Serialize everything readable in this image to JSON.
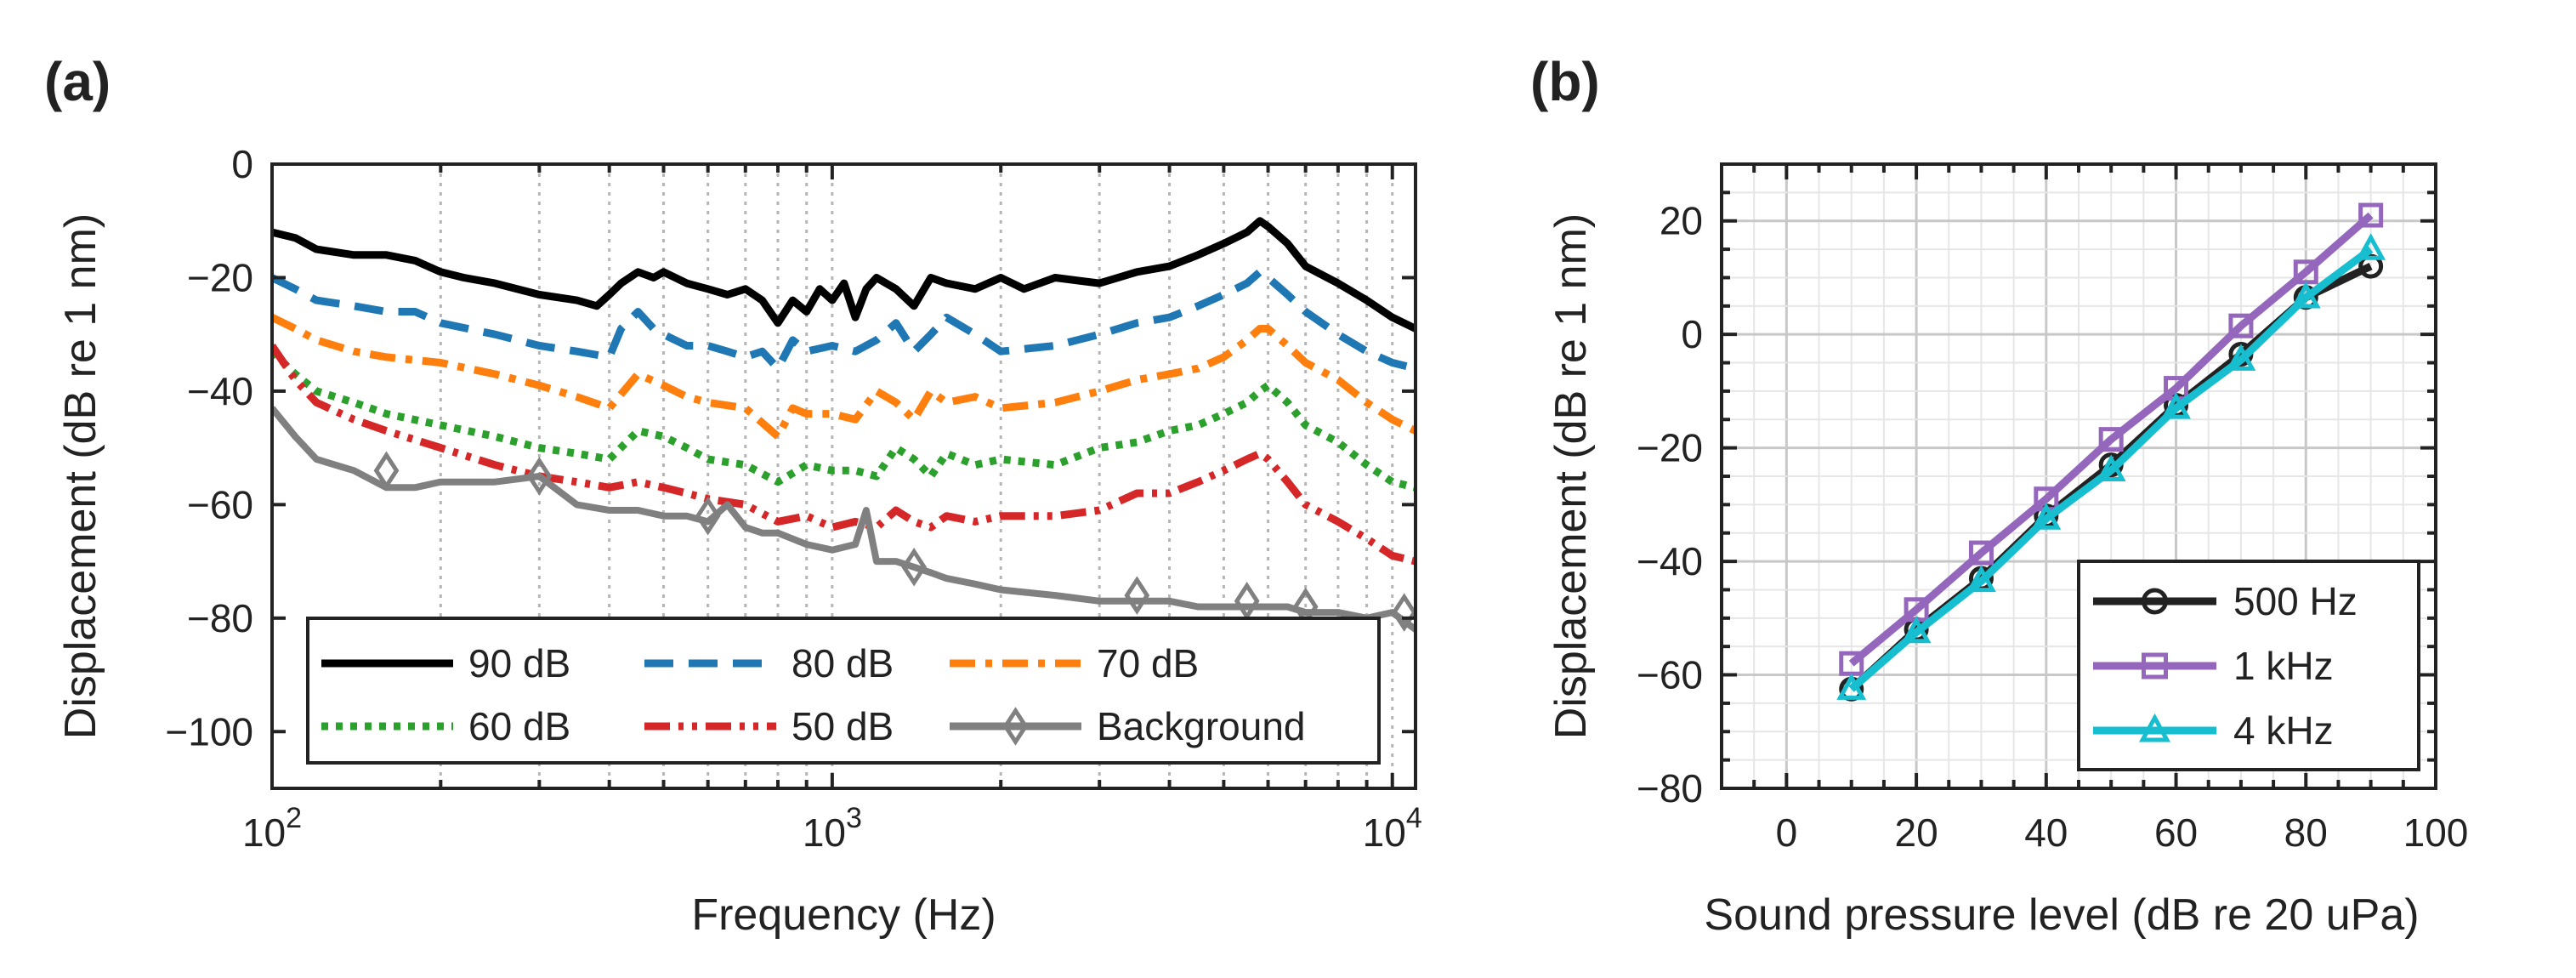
{
  "chart_data": [
    {
      "panel_label": "(a)",
      "type": "line",
      "xscale": "log",
      "xlabel": "Frequency (Hz)",
      "ylabel": "Displacement (dB re 1 nm)",
      "xlim": [
        100,
        11000
      ],
      "ylim": [
        -110,
        0
      ],
      "grid": "x-minor-dotted",
      "xticks": [
        100,
        1000,
        10000
      ],
      "xtick_labels": [
        {
          "base": "10",
          "exp": "2"
        },
        {
          "base": "10",
          "exp": "3"
        },
        {
          "base": "10",
          "exp": "4"
        }
      ],
      "yticks": [
        0,
        -20,
        -40,
        -60,
        -80,
        -100
      ],
      "ytick_labels": [
        "0",
        "−20",
        "−40",
        "−60",
        "−80",
        "−100"
      ],
      "legend_position": "bottom-center",
      "series": [
        {
          "name": "90 dB",
          "color": "#000000",
          "style": "solid",
          "marker": "none",
          "x": [
            100,
            110,
            120,
            140,
            160,
            180,
            200,
            220,
            250,
            300,
            350,
            380,
            400,
            420,
            450,
            480,
            500,
            550,
            600,
            650,
            700,
            750,
            800,
            850,
            900,
            950,
            1000,
            1050,
            1100,
            1150,
            1200,
            1300,
            1400,
            1500,
            1600,
            1800,
            2000,
            2200,
            2500,
            3000,
            3500,
            4000,
            4500,
            5000,
            5500,
            5800,
            6000,
            6500,
            7000,
            8000,
            9000,
            10000,
            11000
          ],
          "y": [
            -12,
            -13,
            -15,
            -16,
            -16,
            -17,
            -19,
            -20,
            -21,
            -23,
            -24,
            -25,
            -23,
            -21,
            -19,
            -20,
            -19,
            -21,
            -22,
            -23,
            -22,
            -24,
            -28,
            -24,
            -26,
            -22,
            -24,
            -21,
            -27,
            -22,
            -20,
            -22,
            -25,
            -20,
            -21,
            -22,
            -20,
            -22,
            -20,
            -21,
            -19,
            -18,
            -16,
            -14,
            -12,
            -10,
            -11,
            -14,
            -18,
            -21,
            -24,
            -27,
            -29
          ]
        },
        {
          "name": "80 dB",
          "color": "#1f77b4",
          "style": "dashed",
          "marker": "none",
          "x": [
            100,
            110,
            120,
            140,
            160,
            180,
            200,
            250,
            300,
            350,
            400,
            420,
            450,
            480,
            500,
            550,
            600,
            650,
            700,
            750,
            800,
            850,
            900,
            1000,
            1100,
            1200,
            1300,
            1400,
            1500,
            1600,
            1800,
            2000,
            2500,
            3000,
            3500,
            4000,
            4500,
            5000,
            5500,
            5800,
            6000,
            6500,
            7000,
            8000,
            9000,
            10000,
            11000
          ],
          "y": [
            -20,
            -22,
            -24,
            -25,
            -26,
            -26,
            -28,
            -30,
            -32,
            -33,
            -34,
            -29,
            -26,
            -29,
            -30,
            -32,
            -32,
            -33,
            -34,
            -33,
            -36,
            -31,
            -33,
            -32,
            -33,
            -31,
            -28,
            -33,
            -30,
            -27,
            -30,
            -33,
            -32,
            -30,
            -28,
            -27,
            -25,
            -23,
            -21,
            -19,
            -20,
            -23,
            -26,
            -30,
            -33,
            -35,
            -36
          ]
        },
        {
          "name": "70 dB",
          "color": "#ff7f0e",
          "style": "dashdot",
          "marker": "none",
          "x": [
            100,
            110,
            120,
            140,
            160,
            200,
            250,
            300,
            350,
            400,
            450,
            500,
            550,
            600,
            700,
            800,
            850,
            900,
            1000,
            1100,
            1200,
            1300,
            1400,
            1500,
            1600,
            1800,
            2000,
            2500,
            3000,
            3500,
            4000,
            4500,
            5000,
            5500,
            5800,
            6000,
            6500,
            7000,
            8000,
            9000,
            10000,
            11000
          ],
          "y": [
            -27,
            -29,
            -31,
            -33,
            -34,
            -35,
            -37,
            -39,
            -41,
            -43,
            -37,
            -39,
            -41,
            -42,
            -43,
            -48,
            -43,
            -44,
            -44,
            -45,
            -40,
            -42,
            -45,
            -40,
            -42,
            -41,
            -43,
            -42,
            -40,
            -38,
            -37,
            -36,
            -34,
            -31,
            -29,
            -29,
            -32,
            -35,
            -38,
            -42,
            -45,
            -47
          ]
        },
        {
          "name": "60 dB",
          "color": "#2ca02c",
          "style": "dotted",
          "marker": "none",
          "x": [
            100,
            110,
            120,
            140,
            160,
            200,
            250,
            300,
            350,
            400,
            450,
            500,
            550,
            600,
            700,
            800,
            900,
            1000,
            1100,
            1200,
            1300,
            1400,
            1500,
            1600,
            1800,
            2000,
            2500,
            3000,
            3500,
            4000,
            4500,
            5000,
            5500,
            5800,
            6000,
            6500,
            7000,
            8000,
            9000,
            10000,
            11000
          ],
          "y": [
            -33,
            -37,
            -40,
            -42,
            -44,
            -46,
            -48,
            -50,
            -51,
            -52,
            -47,
            -48,
            -50,
            -52,
            -53,
            -56,
            -53,
            -54,
            -54,
            -55,
            -50,
            -52,
            -55,
            -51,
            -53,
            -52,
            -53,
            -50,
            -49,
            -47,
            -46,
            -44,
            -42,
            -40,
            -39,
            -42,
            -46,
            -49,
            -53,
            -56,
            -57
          ]
        },
        {
          "name": "50 dB",
          "color": "#d62728",
          "style": "dashdotdot",
          "marker": "none",
          "x": [
            100,
            110,
            120,
            140,
            160,
            200,
            250,
            300,
            350,
            400,
            450,
            500,
            550,
            600,
            700,
            800,
            900,
            1000,
            1100,
            1200,
            1300,
            1400,
            1500,
            1600,
            1800,
            2000,
            2500,
            3000,
            3500,
            4000,
            4500,
            5000,
            5500,
            5800,
            6000,
            6500,
            7000,
            8000,
            9000,
            10000,
            11000
          ],
          "y": [
            -32,
            -38,
            -42,
            -45,
            -47,
            -50,
            -53,
            -55,
            -56,
            -57,
            -56,
            -57,
            -58,
            -59,
            -60,
            -63,
            -62,
            -64,
            -63,
            -64,
            -61,
            -63,
            -64,
            -62,
            -63,
            -62,
            -62,
            -61,
            -58,
            -58,
            -56,
            -54,
            -52,
            -51,
            -52,
            -56,
            -60,
            -63,
            -66,
            -69,
            -70
          ]
        },
        {
          "name": "Background",
          "color": "#808080",
          "style": "solid",
          "marker": "diamond",
          "x": [
            100,
            110,
            120,
            140,
            160,
            180,
            200,
            250,
            300,
            350,
            400,
            450,
            500,
            550,
            600,
            650,
            700,
            750,
            800,
            900,
            1000,
            1100,
            1150,
            1200,
            1300,
            1400,
            1500,
            1600,
            1800,
            2000,
            2500,
            3000,
            3500,
            4000,
            4500,
            5000,
            5500,
            6000,
            6500,
            7000,
            8000,
            9000,
            10000,
            11000
          ],
          "y": [
            -43,
            -48,
            -52,
            -54,
            -57,
            -57,
            -56,
            -56,
            -55,
            -60,
            -61,
            -61,
            -62,
            -62,
            -63,
            -60,
            -64,
            -65,
            -65,
            -67,
            -68,
            -67,
            -61,
            -70,
            -70,
            -71,
            -72,
            -73,
            -74,
            -75,
            -76,
            -77,
            -77,
            -77,
            -78,
            -78,
            -78,
            -78,
            -78,
            -79,
            -79,
            -80,
            -79,
            -82
          ],
          "marker_x": [
            160,
            300,
            600,
            1400,
            3500,
            5500,
            7000,
            10500
          ],
          "marker_y": [
            -54,
            -55,
            -62,
            -71,
            -76,
            -77,
            -78,
            -79
          ]
        }
      ]
    },
    {
      "panel_label": "(b)",
      "type": "line",
      "xlabel": "Sound pressure level (dB re 20 uPa)",
      "ylabel": "Displacement (dB re 1 nm)",
      "xlim": [
        -10,
        100
      ],
      "ylim": [
        -80,
        30
      ],
      "grid": "major-and-minor",
      "xticks": [
        0,
        20,
        40,
        60,
        80,
        100
      ],
      "xtick_labels": [
        "0",
        "20",
        "40",
        "60",
        "80",
        "100"
      ],
      "yticks": [
        20,
        0,
        -20,
        -40,
        -60,
        -80
      ],
      "ytick_labels": [
        "20",
        "0",
        "−20",
        "−40",
        "−60",
        "−80"
      ],
      "legend_position": "bottom-right",
      "series": [
        {
          "name": "500 Hz",
          "color": "#222222",
          "marker": "circle",
          "x": [
            10,
            20,
            30,
            40,
            50,
            60,
            70,
            80,
            90
          ],
          "y": [
            -62.5,
            -52,
            -43,
            -32,
            -23,
            -12.5,
            -3.5,
            6.5,
            12
          ]
        },
        {
          "name": "1 kHz",
          "color": "#9467bd",
          "marker": "square",
          "x": [
            10,
            20,
            30,
            40,
            50,
            60,
            70,
            80,
            90
          ],
          "y": [
            -58,
            -48.5,
            -38.5,
            -29,
            -18.5,
            -9.5,
            1.5,
            11,
            21
          ]
        },
        {
          "name": "4 kHz",
          "color": "#17becf",
          "marker": "triangle",
          "x": [
            10,
            20,
            30,
            40,
            50,
            60,
            70,
            80,
            90
          ],
          "y": [
            -62.5,
            -52.5,
            -43.5,
            -32.5,
            -24,
            -13,
            -4.5,
            6.5,
            15
          ]
        }
      ]
    }
  ]
}
